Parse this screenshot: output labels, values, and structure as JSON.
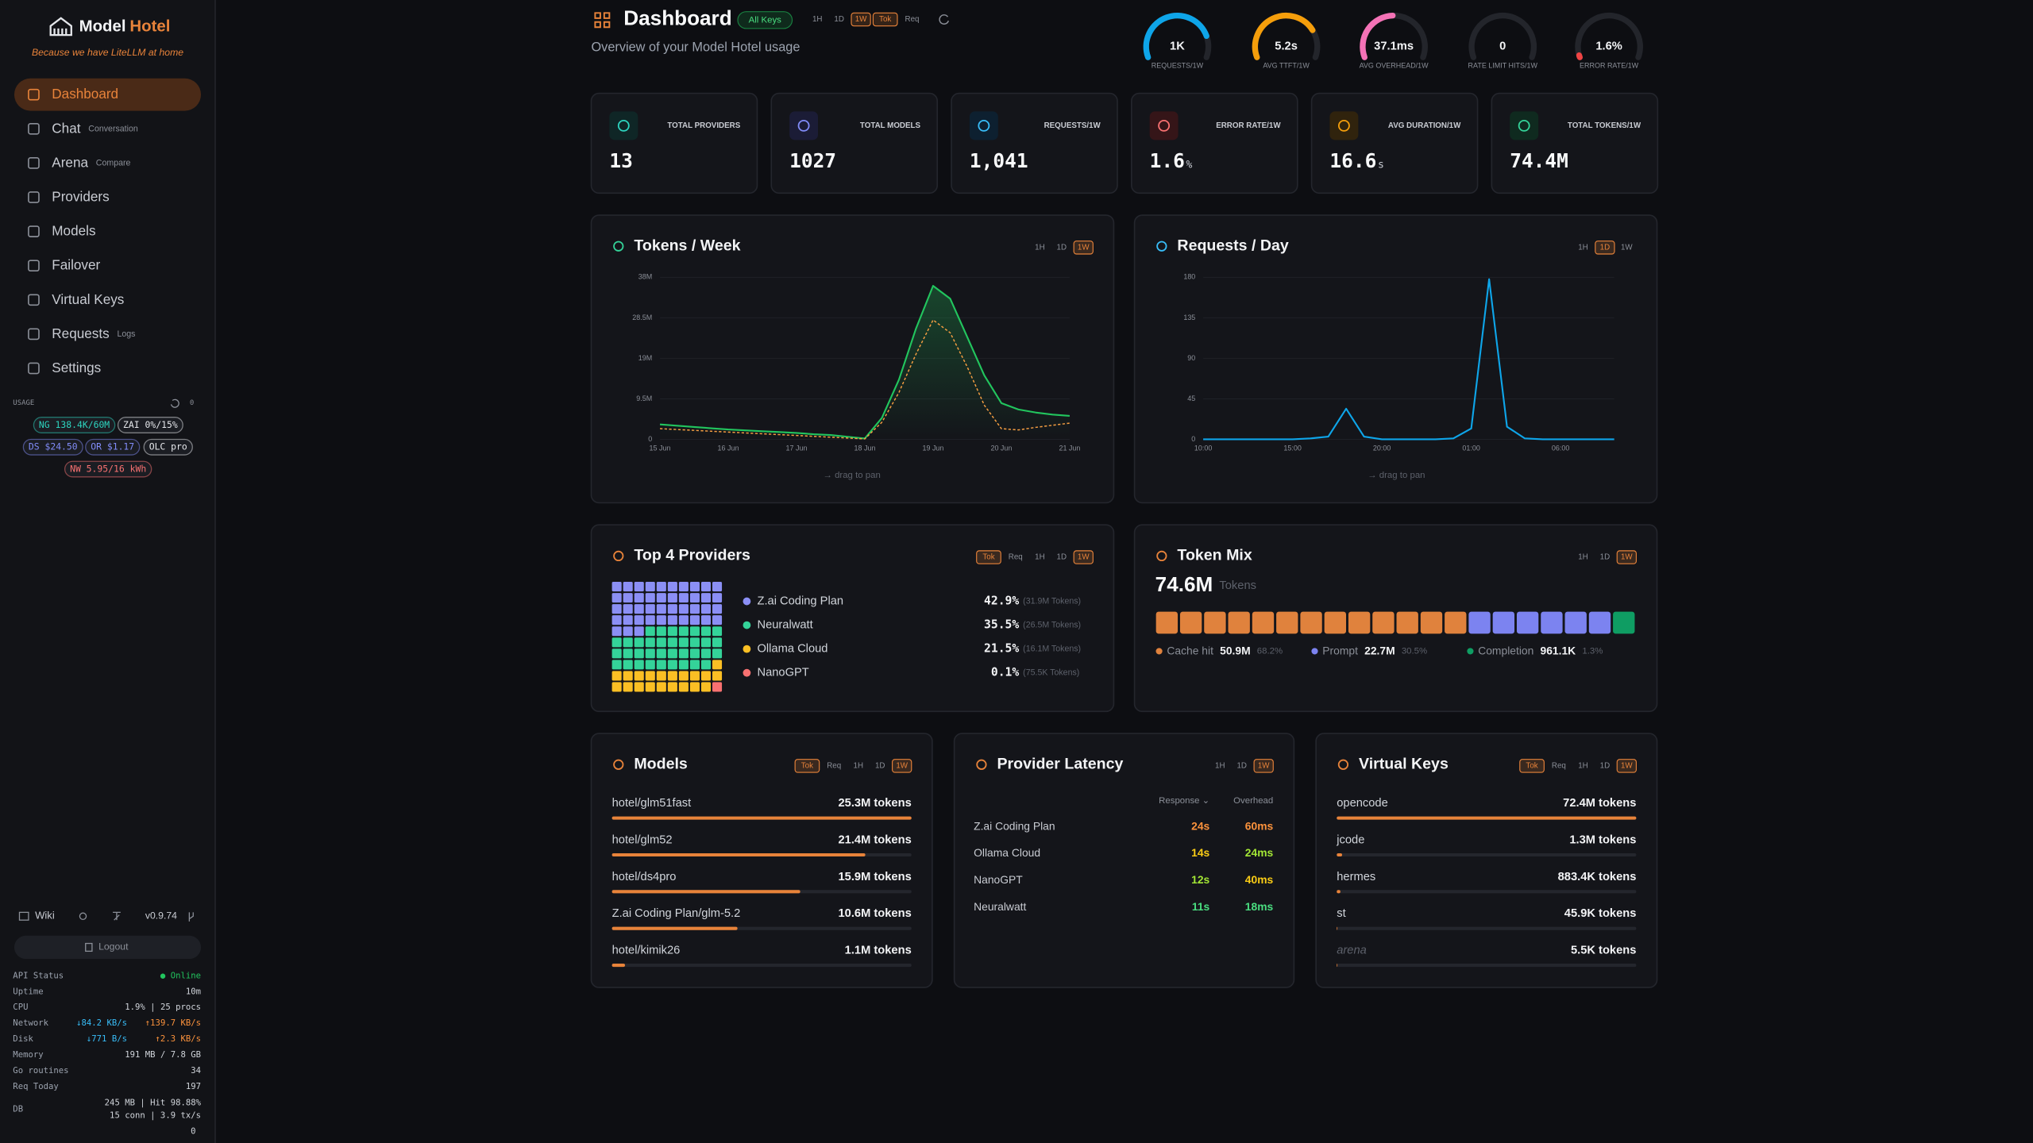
{
  "sidebar": {
    "brand": {
      "name": "Model",
      "accent": "Hotel"
    },
    "tagline": "Because we have LiteLLM at home",
    "nav": [
      {
        "label": "Dashboard",
        "active": true
      },
      {
        "label": "Chat",
        "note": "Conversation"
      },
      {
        "label": "Arena",
        "note": "Compare"
      },
      {
        "label": "Providers"
      },
      {
        "label": "Models"
      },
      {
        "label": "Failover"
      },
      {
        "label": "Virtual Keys"
      },
      {
        "label": "Requests",
        "note": "Logs"
      },
      {
        "label": "Settings"
      }
    ],
    "usage": {
      "title": "USAGE",
      "count": "0",
      "badges": [
        {
          "text": "NG 138.4K/60M",
          "color": "#2dd4bf"
        },
        {
          "text": "ZAI 0%/15%",
          "color": "#e5e7eb"
        },
        {
          "text": "DS $24.50",
          "color": "#818cf8"
        },
        {
          "text": "OR $1.17",
          "color": "#818cf8"
        },
        {
          "text": "OLC pro",
          "color": "#e5e7eb"
        },
        {
          "text": "NW 5.95/16 kWh",
          "color": "#f87171"
        }
      ]
    },
    "wiki": "Wiki",
    "version": "v0.9.74",
    "logout": "Logout",
    "status": [
      {
        "label": "API Status",
        "values": [
          {
            "text": "● Online",
            "color": "#22c55e"
          }
        ]
      },
      {
        "label": "Uptime",
        "values": [
          {
            "text": "10m",
            "color": "#d1d5db"
          }
        ]
      },
      {
        "label": "CPU",
        "values": [
          {
            "text": "1.9% | 25 procs",
            "color": "#d1d5db"
          }
        ]
      },
      {
        "label": "Network",
        "values": [
          {
            "text": "↓84.2 KB/s",
            "color": "#38bdf8"
          },
          {
            "text": "↑139.7 KB/s",
            "color": "#fb923c"
          }
        ]
      },
      {
        "label": "Disk",
        "values": [
          {
            "text": "↓771 B/s",
            "color": "#38bdf8"
          },
          {
            "text": "↑2.3 KB/s",
            "color": "#fb923c"
          }
        ]
      },
      {
        "label": "Memory",
        "values": [
          {
            "text": "191 MB / 7.8 GB",
            "color": "#d1d5db"
          }
        ]
      },
      {
        "label": "Go routines",
        "values": [
          {
            "text": "34",
            "color": "#d1d5db"
          }
        ]
      },
      {
        "label": "Req Today",
        "values": [
          {
            "text": "197",
            "color": "#d1d5db"
          }
        ]
      }
    ],
    "db": {
      "label": "DB",
      "lines": [
        "245 MB | Hit 98.88%",
        "15 conn | 3.9 tx/s"
      ]
    },
    "status_tail": "0"
  },
  "header": {
    "title": "Dashboard",
    "filter": "All Keys",
    "ranges": [
      {
        "text": "1H"
      },
      {
        "text": "1D"
      },
      {
        "text": "1W",
        "active": true
      },
      {
        "text": "Tok",
        "active": true
      },
      {
        "text": "Req"
      }
    ],
    "subtitle": "Overview of your Model Hotel usage"
  },
  "gauges": [
    {
      "value": "1K",
      "label": "REQUESTS/1W",
      "color": "#0ea5e9",
      "fill": 75
    },
    {
      "value": "5.2s",
      "label": "AVG TTFT/1W",
      "color": "#f59e0b",
      "fill": 70
    },
    {
      "value": "37.1ms",
      "label": "AVG OVERHEAD/1W",
      "color": "#f472b6",
      "fill": 45
    },
    {
      "value": "0",
      "label": "RATE LIMIT HITS/1W",
      "color": "#9ca3af",
      "fill": 0
    },
    {
      "value": "1.6%",
      "label": "ERROR RATE/1W",
      "color": "#ef4444",
      "fill": 1.6
    }
  ],
  "stats": [
    {
      "label": "TOTAL PROVIDERS",
      "value": "13"
    },
    {
      "label": "TOTAL MODELS",
      "value": "1027"
    },
    {
      "label": "REQUESTS/1W",
      "value": "1,041"
    },
    {
      "label": "ERROR RATE/1W",
      "value": "1.6",
      "unit": "%"
    },
    {
      "label": "AVG DURATION/1W",
      "value": "16.6",
      "unit": "s"
    },
    {
      "label": "TOTAL TOKENS/1W",
      "value": "74.4M"
    }
  ],
  "tokens_week": {
    "title": "Tokens / Week",
    "ranges": [
      {
        "text": "1H"
      },
      {
        "text": "1D"
      },
      {
        "text": "1W",
        "active": true
      }
    ],
    "chart": {
      "type": "line",
      "categories": [
        "15 Jun",
        null,
        null,
        null,
        "16 Jun",
        null,
        null,
        null,
        "17 Jun",
        null,
        null,
        null,
        "18 Jun",
        null,
        null,
        null,
        "19 Jun",
        null,
        null,
        null,
        "20 Jun",
        null,
        null,
        null,
        "21 Jun"
      ],
      "series": [
        {
          "color": "#22c55e",
          "area": true,
          "values": [
            3500000,
            3200000,
            2900000,
            2600000,
            2300000,
            2100000,
            1900000,
            1700000,
            1500000,
            1200000,
            1000000,
            600000,
            200000,
            5000000,
            14000000,
            26000000,
            36000000,
            33000000,
            24000000,
            15000000,
            8500000,
            7000000,
            6300000,
            5800000,
            5500000
          ]
        },
        {
          "color": "#f59e42",
          "dash": true,
          "values": [
            2500000,
            2300000,
            2100000,
            1900000,
            1700000,
            1500000,
            1300000,
            1100000,
            900000,
            700000,
            500000,
            300000,
            100000,
            4000000,
            11000000,
            20000000,
            28000000,
            25000000,
            17000000,
            8000000,
            2500000,
            2200000,
            2800000,
            3300000,
            3800000
          ]
        }
      ],
      "ylim": [
        0,
        38000000
      ],
      "yticks": [
        0,
        {
          "value": 9500000,
          "label": "9.5M"
        },
        {
          "value": 19000000,
          "label": "19M"
        },
        {
          "value": 28500000,
          "label": "28.5M"
        },
        {
          "value": 38000000,
          "label": "38M"
        }
      ],
      "grid": true
    },
    "hint": "→  drag to pan"
  },
  "requests_day": {
    "title": "Requests / Day",
    "ranges": [
      {
        "text": "1H"
      },
      {
        "text": "1D",
        "active": true
      },
      {
        "text": "1W"
      }
    ],
    "chart": {
      "type": "line",
      "categories": [
        "10:00",
        null,
        null,
        null,
        null,
        "15:00",
        null,
        null,
        null,
        null,
        "20:00",
        null,
        null,
        null,
        null,
        "01:00",
        null,
        null,
        null,
        null,
        "06:00",
        null,
        null,
        null
      ],
      "series": [
        {
          "color": "#0ea5e9",
          "values": [
            0,
            0,
            0,
            0,
            0,
            0,
            1,
            3,
            34,
            3,
            0,
            0,
            0,
            0,
            1,
            12,
            178,
            14,
            1,
            0,
            0,
            0,
            0,
            0
          ]
        }
      ],
      "ylim": [
        0,
        180
      ],
      "yticks": [
        0,
        45,
        90,
        135,
        180
      ],
      "grid": true
    },
    "hint": "→  drag to pan"
  },
  "top_providers": {
    "title": "Top 4 Providers",
    "ranges": [
      {
        "text": "Tok",
        "active": true
      },
      {
        "text": "Req"
      },
      {
        "text": "1H"
      },
      {
        "text": "1D"
      },
      {
        "text": "1W",
        "active": true
      }
    ],
    "providers": [
      {
        "name": "Z.ai Coding Plan",
        "share": 42.9,
        "share_label": "42.9%",
        "tokens": "(31.9M Tokens)",
        "color": "#8b8ff5"
      },
      {
        "name": "Neuralwatt",
        "share": 35.5,
        "share_label": "35.5%",
        "tokens": "(26.5M Tokens)",
        "color": "#34d399"
      },
      {
        "name": "Ollama Cloud",
        "share": 21.5,
        "share_label": "21.5%",
        "tokens": "(16.1M Tokens)",
        "color": "#fbbf24"
      },
      {
        "name": "NanoGPT",
        "share": 0.1,
        "share_label": "0.1%",
        "tokens": "(75.5K Tokens)",
        "color": "#f87171"
      }
    ]
  },
  "token_mix": {
    "title": "Token Mix",
    "ranges": [
      {
        "text": "1H"
      },
      {
        "text": "1D"
      },
      {
        "text": "1W",
        "active": true
      }
    ],
    "total": "74.6M",
    "unit": "Tokens",
    "segments": [
      {
        "name": "Cache hit",
        "amount": "50.9M",
        "share": 68.2,
        "share_label": "68.2%",
        "color": "#e0823d"
      },
      {
        "name": "Prompt",
        "amount": "22.7M",
        "share": 30.5,
        "share_label": "30.5%",
        "color": "#7c83f0"
      },
      {
        "name": "Completion",
        "amount": "961.1K",
        "share": 1.3,
        "share_label": "1.3%",
        "color": "#0f9d63"
      }
    ]
  },
  "models": {
    "title": "Models",
    "ranges": [
      {
        "text": "Tok",
        "active": true
      },
      {
        "text": "Req"
      },
      {
        "text": "1H"
      },
      {
        "text": "1D"
      },
      {
        "text": "1W",
        "active": true
      }
    ],
    "rows": [
      {
        "name": "hotel/glm51fast",
        "tokens": 25300000,
        "tokens_label": "25.3M tokens"
      },
      {
        "name": "hotel/glm52",
        "tokens": 21400000,
        "tokens_label": "21.4M tokens"
      },
      {
        "name": "hotel/ds4pro",
        "tokens": 15900000,
        "tokens_label": "15.9M tokens"
      },
      {
        "name": "Z.ai Coding Plan/glm-5.2",
        "tokens": 10600000,
        "tokens_label": "10.6M tokens"
      },
      {
        "name": "hotel/kimik26",
        "tokens": 1100000,
        "tokens_label": "1.1M tokens"
      }
    ]
  },
  "provider_latency": {
    "title": "Provider Latency",
    "ranges": [
      {
        "text": "1H"
      },
      {
        "text": "1D"
      },
      {
        "text": "1W",
        "active": true
      }
    ],
    "columns": [
      "Response ⌄",
      "Overhead"
    ],
    "rows": [
      {
        "name": "Z.ai Coding Plan",
        "response": "24s",
        "response_color": "#fb923c",
        "overhead": "60ms",
        "overhead_color": "#fb923c"
      },
      {
        "name": "Ollama Cloud",
        "response": "14s",
        "response_color": "#facc15",
        "overhead": "24ms",
        "overhead_color": "#a3e635"
      },
      {
        "name": "NanoGPT",
        "response": "12s",
        "response_color": "#a3e635",
        "overhead": "40ms",
        "overhead_color": "#facc15"
      },
      {
        "name": "Neuralwatt",
        "response": "11s",
        "response_color": "#4ade80",
        "overhead": "18ms",
        "overhead_color": "#4ade80"
      }
    ]
  },
  "virtual_keys": {
    "title": "Virtual Keys",
    "ranges": [
      {
        "text": "Tok",
        "active": true
      },
      {
        "text": "Req"
      },
      {
        "text": "1H"
      },
      {
        "text": "1D"
      },
      {
        "text": "1W",
        "active": true
      }
    ],
    "rows": [
      {
        "name": "opencode",
        "tokens": 72400000,
        "tokens_label": "72.4M tokens"
      },
      {
        "name": "jcode",
        "tokens": 1300000,
        "tokens_label": "1.3M tokens"
      },
      {
        "name": "hermes",
        "tokens": 883400,
        "tokens_label": "883.4K tokens"
      },
      {
        "name": "st",
        "tokens": 45900,
        "tokens_label": "45.9K tokens"
      },
      {
        "name": "arena",
        "tokens": 5500,
        "tokens_label": "5.5K tokens",
        "muted": true
      }
    ]
  }
}
